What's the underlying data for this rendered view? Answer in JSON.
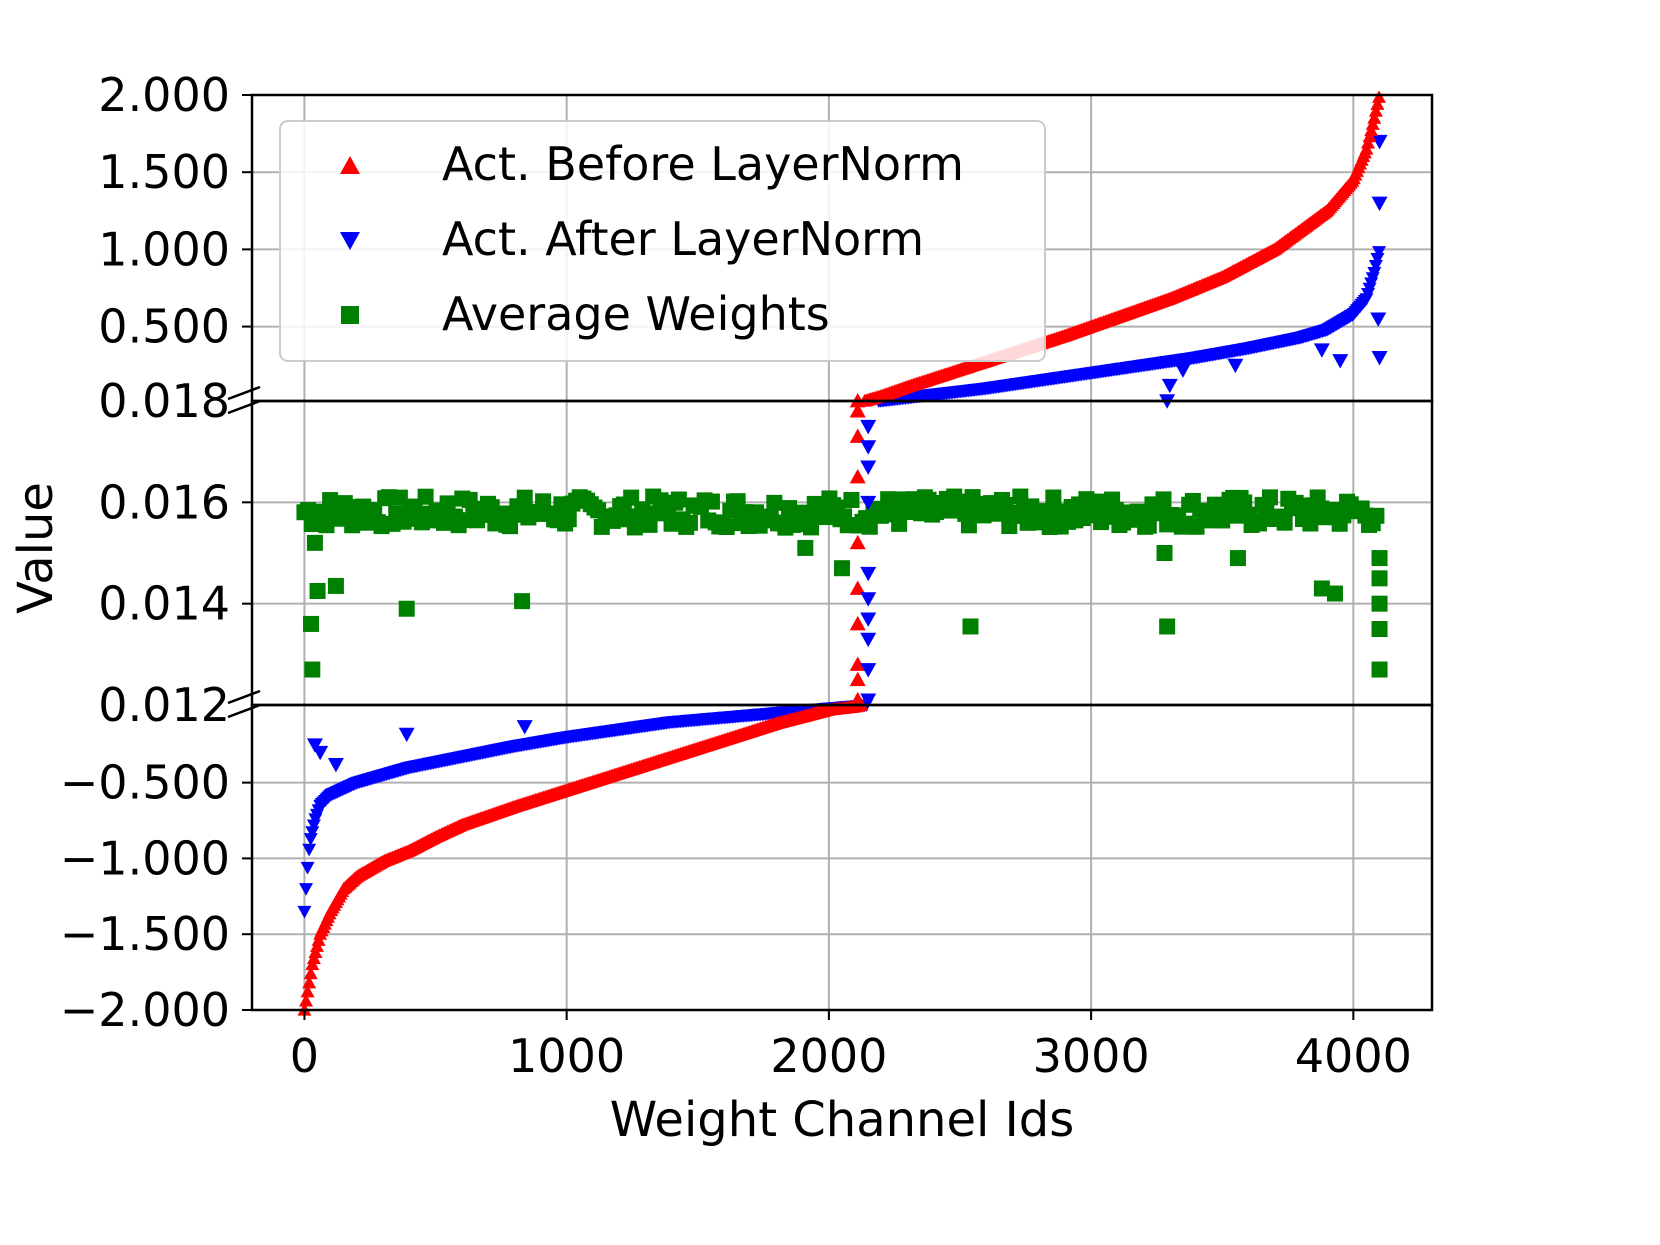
{
  "chart_data": {
    "type": "scatter",
    "xlabel": "Weight Channel Ids",
    "ylabel": "Value",
    "xlim": [
      -200,
      4300
    ],
    "x_ticks": [
      0,
      1000,
      2000,
      3000,
      4000
    ],
    "x_tick_labels": [
      "0",
      "1000",
      "2000",
      "3000",
      "4000"
    ],
    "broken_y_axis": [
      {
        "panel": "top",
        "ylim": [
          0.018,
          2.0
        ],
        "ticks": [
          0.5,
          1.0,
          1.5,
          2.0
        ],
        "tick_labels": [
          "0.500",
          "1.000",
          "1.500",
          "2.000"
        ],
        "bottom_label": "0.018"
      },
      {
        "panel": "middle",
        "ylim": [
          0.012,
          0.018
        ],
        "ticks": [
          0.014,
          0.016
        ],
        "tick_labels": [
          "0.014",
          "0.016"
        ],
        "bottom_label": "0.012"
      },
      {
        "panel": "bottom",
        "ylim": [
          -2.0,
          0.012
        ],
        "ticks": [
          -2.0,
          -1.5,
          -1.0,
          -0.5
        ],
        "tick_labels": [
          "−2.000",
          "−1.500",
          "−1.000",
          "−0.500"
        ]
      }
    ],
    "grid": true,
    "legend_position": "upper-left",
    "series": [
      {
        "name": "Act. Before LayerNorm",
        "marker": "triangle-up",
        "color": "#ff0000",
        "description": "sorted activation values, monotonically increasing",
        "x": [
          0,
          10,
          30,
          60,
          100,
          150,
          200,
          300,
          400,
          500,
          600,
          700,
          800,
          1000,
          1200,
          1400,
          1600,
          1800,
          2000,
          2100,
          2200,
          2300,
          2500,
          2700,
          2900,
          3100,
          3300,
          3500,
          3700,
          3900,
          4000,
          4050,
          4080,
          4100
        ],
        "y": [
          -2.0,
          -1.9,
          -1.7,
          -1.5,
          -1.35,
          -1.2,
          -1.12,
          -1.02,
          -0.95,
          -0.86,
          -0.78,
          -0.72,
          -0.66,
          -0.55,
          -0.44,
          -0.33,
          -0.22,
          -0.11,
          -0.02,
          0.0,
          0.05,
          0.11,
          0.22,
          0.33,
          0.44,
          0.56,
          0.68,
          0.82,
          1.0,
          1.25,
          1.45,
          1.65,
          1.85,
          2.0
        ]
      },
      {
        "name": "Act. After LayerNorm",
        "marker": "triangle-down",
        "color": "#0000ff",
        "description": "sorted layer-normalized activation values",
        "x": [
          0,
          10,
          20,
          40,
          60,
          100,
          150,
          200,
          300,
          400,
          600,
          800,
          1000,
          1200,
          1400,
          1600,
          1800,
          2000,
          2200,
          2400,
          2600,
          2800,
          3000,
          3200,
          3400,
          3600,
          3800,
          3900,
          4000,
          4050,
          4080,
          4100
        ],
        "y": [
          -1.35,
          -1.1,
          -0.9,
          -0.75,
          -0.65,
          -0.58,
          -0.54,
          -0.5,
          -0.45,
          -0.4,
          -0.33,
          -0.26,
          -0.2,
          -0.15,
          -0.1,
          -0.07,
          -0.04,
          -0.01,
          0.02,
          0.06,
          0.1,
          0.15,
          0.2,
          0.25,
          0.3,
          0.36,
          0.43,
          0.48,
          0.58,
          0.68,
          0.85,
          1.0
        ],
        "outliers": [
          {
            "x": 40,
            "y": -0.25
          },
          {
            "x": 60,
            "y": -0.3
          },
          {
            "x": 120,
            "y": -0.38
          },
          {
            "x": 390,
            "y": -0.18
          },
          {
            "x": 840,
            "y": -0.13
          },
          {
            "x": 3290,
            "y": 0.02
          },
          {
            "x": 3300,
            "y": 0.12
          },
          {
            "x": 3350,
            "y": 0.22
          },
          {
            "x": 3550,
            "y": 0.25
          },
          {
            "x": 3880,
            "y": 0.35
          },
          {
            "x": 3950,
            "y": 0.28
          },
          {
            "x": 4100,
            "y": 1.7
          },
          {
            "x": 4100,
            "y": 1.3
          },
          {
            "x": 4100,
            "y": 0.3
          },
          {
            "x": 4095,
            "y": 0.55
          }
        ]
      },
      {
        "name": "Average Weights",
        "marker": "square",
        "color": "#008000",
        "description": "per-channel average weights clustered near 0.0158",
        "band_center": 0.0158,
        "band_low": 0.0155,
        "band_high": 0.01612,
        "x_range": [
          0,
          4100
        ],
        "outliers": [
          {
            "x": 25,
            "y": 0.0136
          },
          {
            "x": 30,
            "y": 0.0127
          },
          {
            "x": 40,
            "y": 0.0152
          },
          {
            "x": 50,
            "y": 0.01425
          },
          {
            "x": 120,
            "y": 0.01435
          },
          {
            "x": 390,
            "y": 0.0139
          },
          {
            "x": 830,
            "y": 0.01405
          },
          {
            "x": 1910,
            "y": 0.0151
          },
          {
            "x": 2050,
            "y": 0.0147
          },
          {
            "x": 2540,
            "y": 0.01355
          },
          {
            "x": 3290,
            "y": 0.01355
          },
          {
            "x": 3280,
            "y": 0.015
          },
          {
            "x": 3560,
            "y": 0.0149
          },
          {
            "x": 3880,
            "y": 0.0143
          },
          {
            "x": 3930,
            "y": 0.0142
          },
          {
            "x": 4100,
            "y": 0.0127
          },
          {
            "x": 4100,
            "y": 0.0135
          },
          {
            "x": 4100,
            "y": 0.014
          },
          {
            "x": 4100,
            "y": 0.0145
          },
          {
            "x": 4100,
            "y": 0.0149
          }
        ]
      }
    ],
    "transition_points": [
      {
        "series": "Act. Before LayerNorm",
        "x": 2110,
        "y_values": [
          0.0121,
          0.0125,
          0.0128,
          0.0136,
          0.0143,
          0.0152,
          0.0165,
          0.0173,
          0.0178,
          0.018
        ]
      },
      {
        "series": "Act. After LayerNorm",
        "x": 2150,
        "y_values": [
          0.0121,
          0.0127,
          0.0133,
          0.0137,
          0.0141,
          0.0146,
          0.016,
          0.0167,
          0.0171,
          0.0175
        ]
      }
    ]
  }
}
